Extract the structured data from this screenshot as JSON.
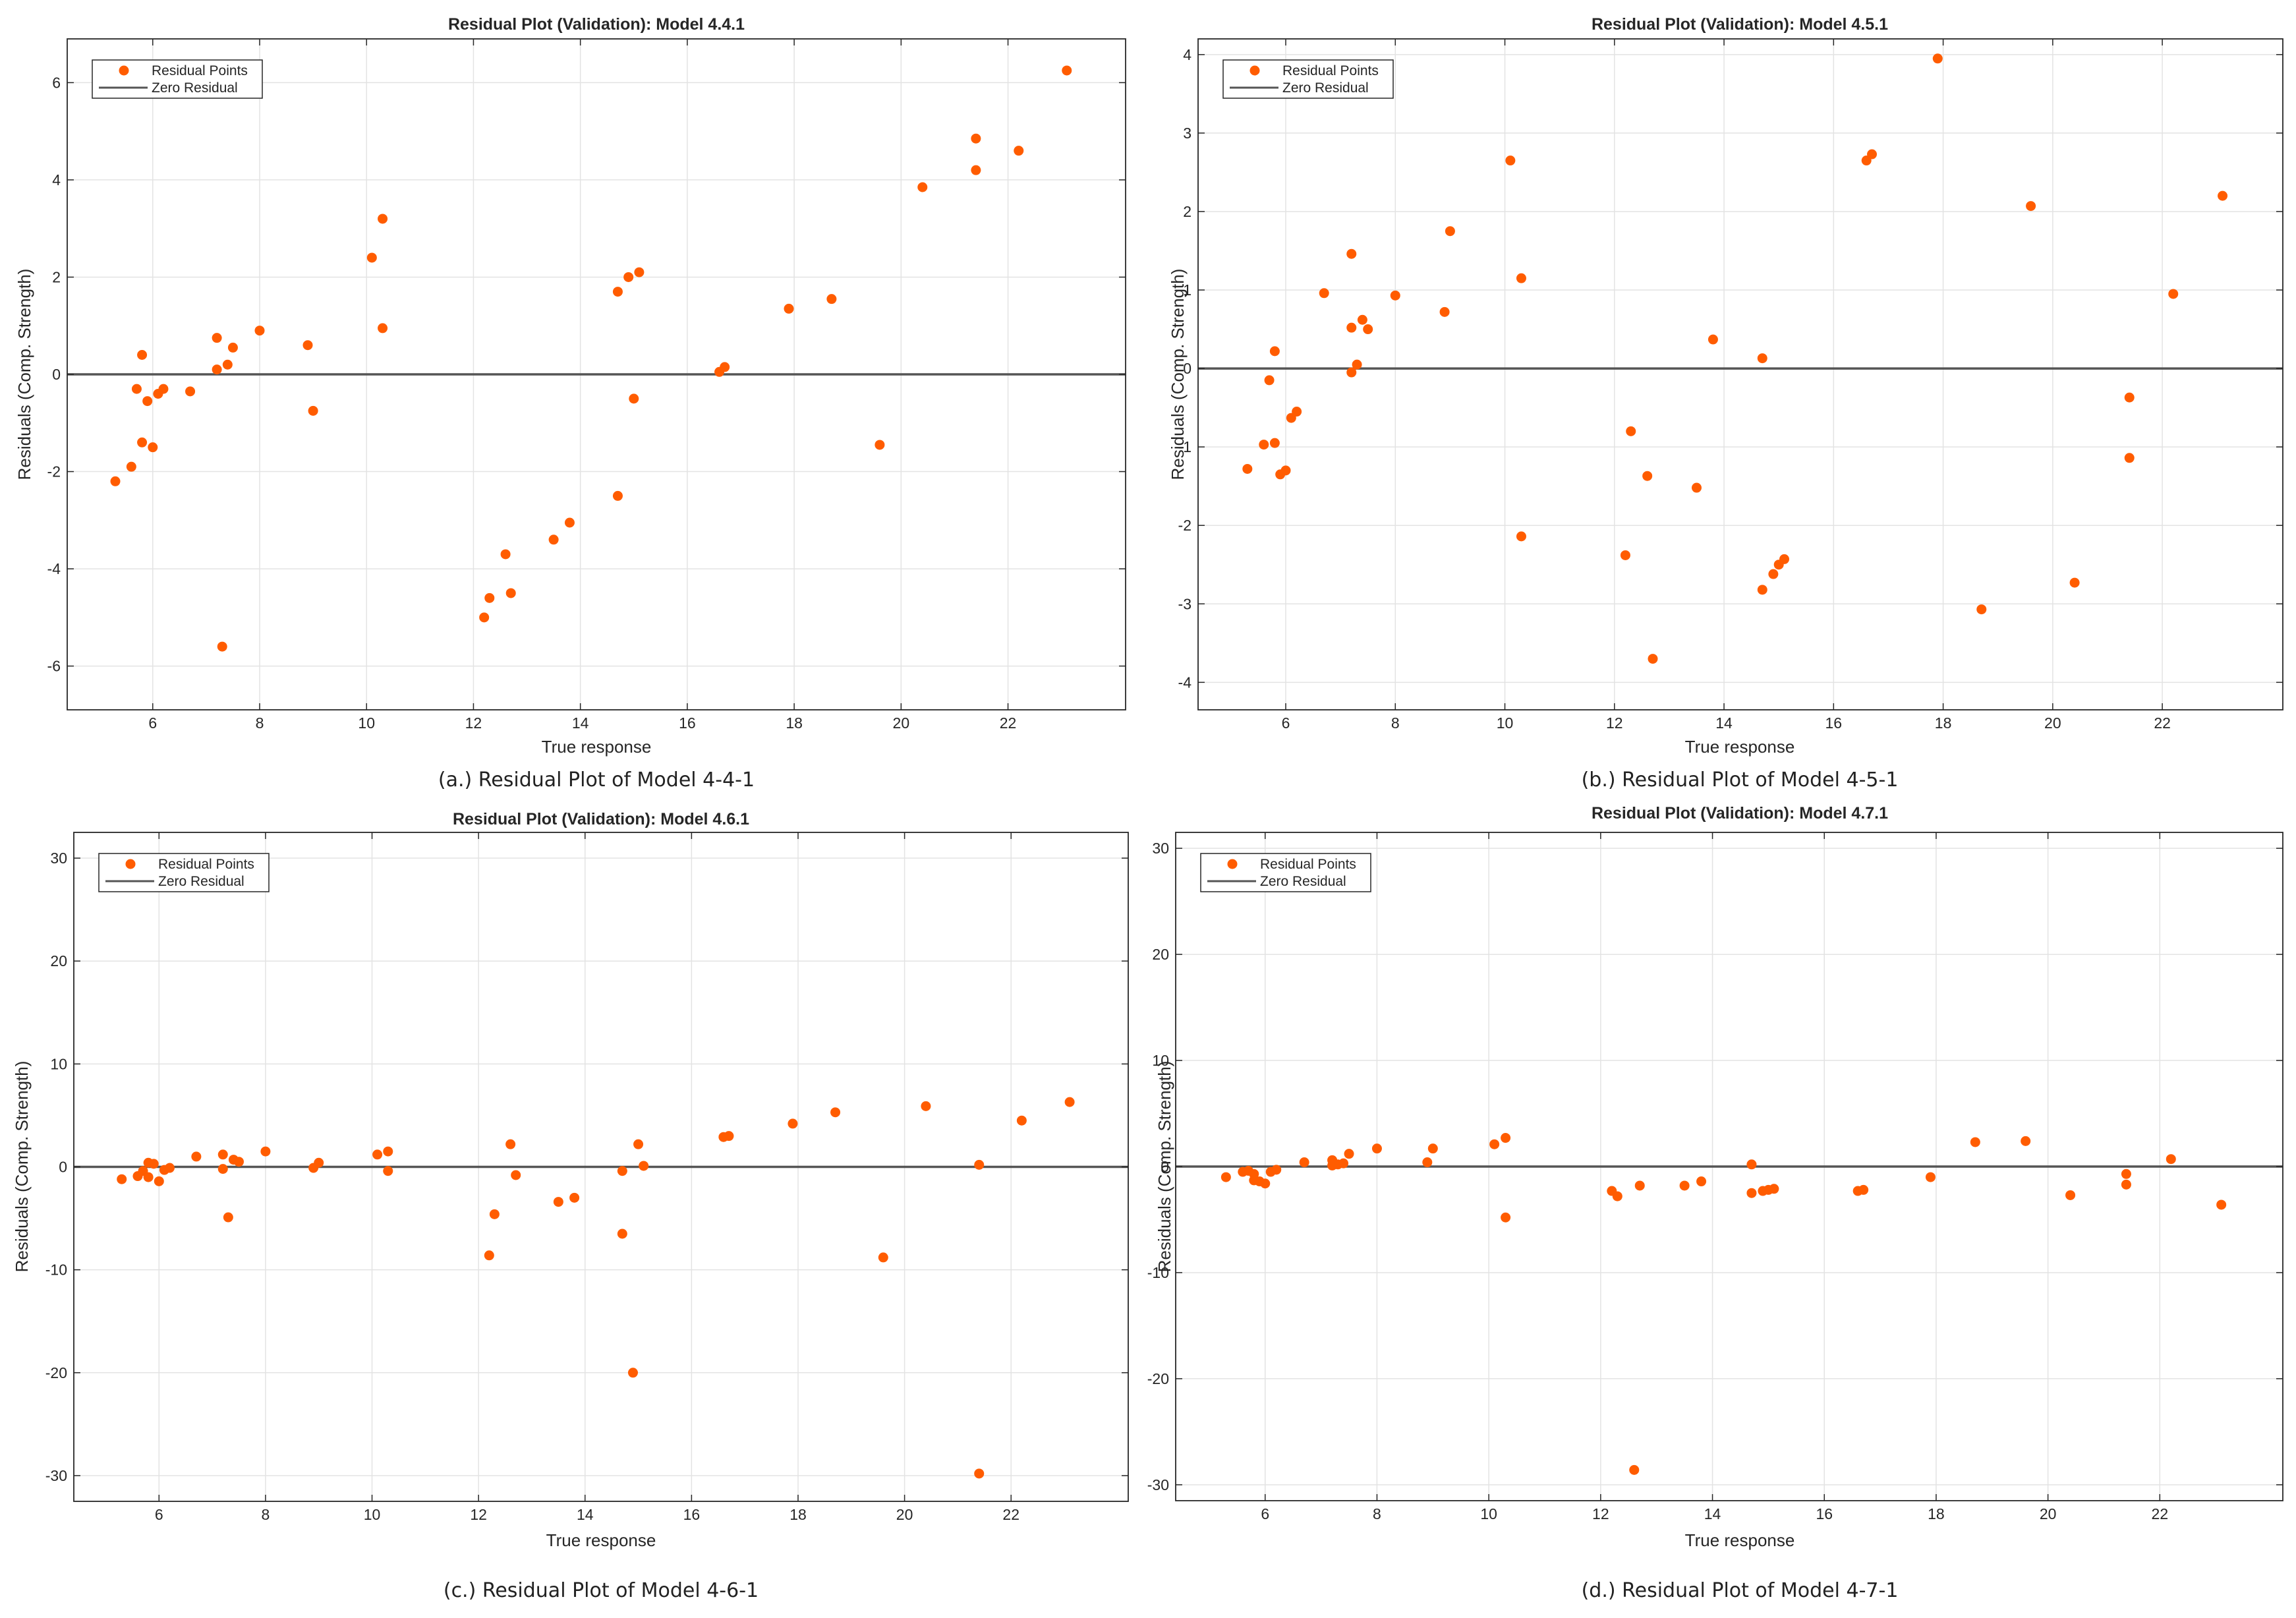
{
  "marker_color": "#ff5c00",
  "zero_line_color": "#555555",
  "chart_data": [
    {
      "type": "scatter",
      "title": "Residual Plot (Validation): Model 4.4.1",
      "xlabel": "True response",
      "ylabel": "Residuals (Comp. Strength)",
      "caption": "(a.) Residual Plot of Model 4-4-1",
      "legend": [
        "Residual Points",
        "Zero Residual"
      ],
      "legend_position": "top-left",
      "grid": true,
      "xlim": [
        4.4,
        24.2
      ],
      "ylim": [
        -6.9,
        6.9
      ],
      "xticks": [
        "6",
        "8",
        "10",
        "12",
        "14",
        "16",
        "18",
        "20",
        "22"
      ],
      "yticks": [
        "-6",
        "-4",
        "-2",
        "0",
        "2",
        "4",
        "6"
      ],
      "series": [
        {
          "x": [
            5.3,
            5.6,
            5.7,
            5.8,
            5.8,
            5.9,
            6.0,
            6.1,
            6.2,
            6.7,
            7.2,
            7.2,
            7.3,
            7.4,
            7.5,
            8.0,
            8.9,
            9.0,
            10.1,
            10.3,
            10.3,
            12.2,
            12.3,
            12.6,
            12.7,
            13.5,
            13.8,
            14.7,
            14.7,
            14.9,
            15.0,
            15.1,
            16.6,
            16.7,
            17.9,
            18.7,
            19.6,
            20.4,
            21.4,
            21.4,
            22.2,
            23.1
          ],
          "y": [
            -2.2,
            -1.9,
            -0.3,
            0.4,
            -1.4,
            -0.55,
            -1.5,
            -0.4,
            -0.3,
            -0.35,
            0.75,
            0.1,
            -5.6,
            0.2,
            0.55,
            0.9,
            0.6,
            -0.75,
            2.4,
            3.2,
            0.95,
            -5.0,
            -4.6,
            -3.7,
            -4.5,
            -3.4,
            -3.05,
            -2.5,
            1.7,
            2.0,
            -0.5,
            2.1,
            0.05,
            0.15,
            1.35,
            1.55,
            -1.45,
            3.85,
            4.85,
            4.2,
            4.6,
            6.25
          ]
        }
      ]
    },
    {
      "type": "scatter",
      "title": "Residual Plot (Validation): Model 4.5.1",
      "xlabel": "True response",
      "ylabel": "Residuals (Comp. Strength)",
      "caption": "(b.) Residual Plot of Model 4-5-1",
      "legend": [
        "Residual Points",
        "Zero Residual"
      ],
      "legend_position": "top-left",
      "grid": true,
      "xlim": [
        4.4,
        24.2
      ],
      "ylim": [
        -4.35,
        4.2
      ],
      "xticks": [
        "6",
        "8",
        "10",
        "12",
        "14",
        "16",
        "18",
        "20",
        "22"
      ],
      "yticks": [
        "-4",
        "-3",
        "-2",
        "-1",
        "0",
        "1",
        "2",
        "3",
        "4"
      ],
      "series": [
        {
          "x": [
            5.3,
            5.6,
            5.7,
            5.8,
            5.8,
            5.9,
            6.0,
            6.1,
            6.2,
            6.7,
            7.2,
            7.2,
            7.2,
            7.3,
            7.4,
            7.5,
            8.0,
            8.9,
            9.0,
            10.1,
            10.3,
            10.3,
            12.2,
            12.3,
            12.6,
            12.7,
            13.5,
            13.8,
            14.7,
            14.7,
            14.9,
            15.0,
            15.1,
            16.6,
            16.7,
            17.9,
            18.7,
            19.6,
            20.4,
            21.4,
            21.4,
            22.2,
            23.1
          ],
          "y": [
            -1.28,
            -0.97,
            -0.15,
            0.22,
            -0.95,
            -1.35,
            -1.3,
            -0.63,
            -0.55,
            0.96,
            1.46,
            0.52,
            -0.05,
            0.05,
            0.62,
            0.5,
            0.93,
            0.72,
            1.75,
            2.65,
            1.15,
            -2.14,
            -2.38,
            -0.8,
            -1.37,
            -3.7,
            -1.52,
            0.37,
            -2.82,
            0.13,
            -2.62,
            -2.5,
            -2.43,
            2.65,
            2.73,
            3.95,
            -3.07,
            2.07,
            -2.73,
            -0.37,
            -1.14,
            0.95,
            2.2
          ]
        }
      ]
    },
    {
      "type": "scatter",
      "title": "Residual Plot (Validation): Model 4.6.1",
      "xlabel": "True response",
      "ylabel": "Residuals (Comp. Strength)",
      "caption": "(c.) Residual Plot of Model 4-6-1",
      "legend": [
        "Residual Points",
        "Zero Residual"
      ],
      "legend_position": "top-left",
      "grid": true,
      "xlim": [
        4.4,
        24.2
      ],
      "ylim": [
        -32.5,
        32.5
      ],
      "xticks": [
        "6",
        "8",
        "10",
        "12",
        "14",
        "16",
        "18",
        "20",
        "22"
      ],
      "yticks": [
        "-30",
        "-20",
        "-10",
        "0",
        "10",
        "20",
        "30"
      ],
      "series": [
        {
          "x": [
            5.3,
            5.6,
            5.7,
            5.8,
            5.8,
            5.9,
            6.0,
            6.1,
            6.2,
            6.7,
            7.2,
            7.2,
            7.3,
            7.4,
            7.5,
            8.0,
            8.9,
            9.0,
            10.1,
            10.3,
            10.3,
            12.2,
            12.3,
            12.6,
            12.7,
            13.5,
            13.8,
            14.7,
            14.7,
            14.9,
            15.0,
            15.1,
            16.6,
            16.7,
            17.9,
            18.7,
            19.6,
            20.4,
            21.4,
            21.4,
            22.2,
            23.1
          ],
          "y": [
            -1.2,
            -0.9,
            -0.4,
            0.4,
            -1.0,
            0.3,
            -1.4,
            -0.3,
            -0.1,
            1.0,
            1.2,
            -0.2,
            -4.9,
            0.7,
            0.5,
            1.5,
            -0.1,
            0.4,
            1.2,
            1.5,
            -0.4,
            -8.6,
            -4.6,
            2.2,
            -0.8,
            -3.4,
            -3.0,
            -6.5,
            -0.4,
            -20.0,
            2.2,
            0.1,
            2.9,
            3.0,
            4.2,
            5.3,
            -8.8,
            5.9,
            0.2,
            -29.8,
            4.5,
            6.3
          ]
        }
      ]
    },
    {
      "type": "scatter",
      "title": "Residual Plot (Validation): Model 4.7.1",
      "xlabel": "True response",
      "ylabel": "Residuals (Comp. Strength)",
      "caption": "(d.) Residual Plot of Model 4-7-1",
      "legend": [
        "Residual Points",
        "Zero Residual"
      ],
      "legend_position": "top-left",
      "grid": true,
      "xlim": [
        4.4,
        24.2
      ],
      "ylim": [
        -31.5,
        31.5
      ],
      "xticks": [
        "6",
        "8",
        "10",
        "12",
        "14",
        "16",
        "18",
        "20",
        "22"
      ],
      "yticks": [
        "-30",
        "-20",
        "-10",
        "0",
        "10",
        "20",
        "30"
      ],
      "series": [
        {
          "x": [
            5.3,
            5.6,
            5.7,
            5.8,
            5.8,
            5.9,
            6.0,
            6.1,
            6.2,
            6.7,
            7.2,
            7.2,
            7.3,
            7.4,
            7.5,
            8.0,
            8.9,
            9.0,
            10.1,
            10.3,
            10.3,
            12.2,
            12.3,
            12.6,
            12.7,
            13.5,
            13.8,
            14.7,
            14.7,
            14.9,
            15.0,
            15.1,
            16.6,
            16.7,
            17.9,
            18.7,
            19.6,
            20.4,
            21.4,
            21.4,
            22.2,
            23.1
          ],
          "y": [
            -1.0,
            -0.5,
            -0.4,
            -1.3,
            -0.7,
            -1.4,
            -1.6,
            -0.5,
            -0.3,
            0.4,
            0.6,
            0.1,
            0.2,
            0.3,
            1.2,
            1.7,
            0.4,
            1.7,
            2.1,
            2.7,
            -4.8,
            -2.3,
            -2.8,
            -28.6,
            -1.8,
            -1.8,
            -1.4,
            -2.5,
            0.2,
            -2.3,
            -2.2,
            -2.1,
            -2.3,
            -2.2,
            -1.0,
            2.3,
            2.4,
            -2.7,
            -0.7,
            -1.7,
            0.7,
            -3.6
          ]
        }
      ]
    }
  ]
}
